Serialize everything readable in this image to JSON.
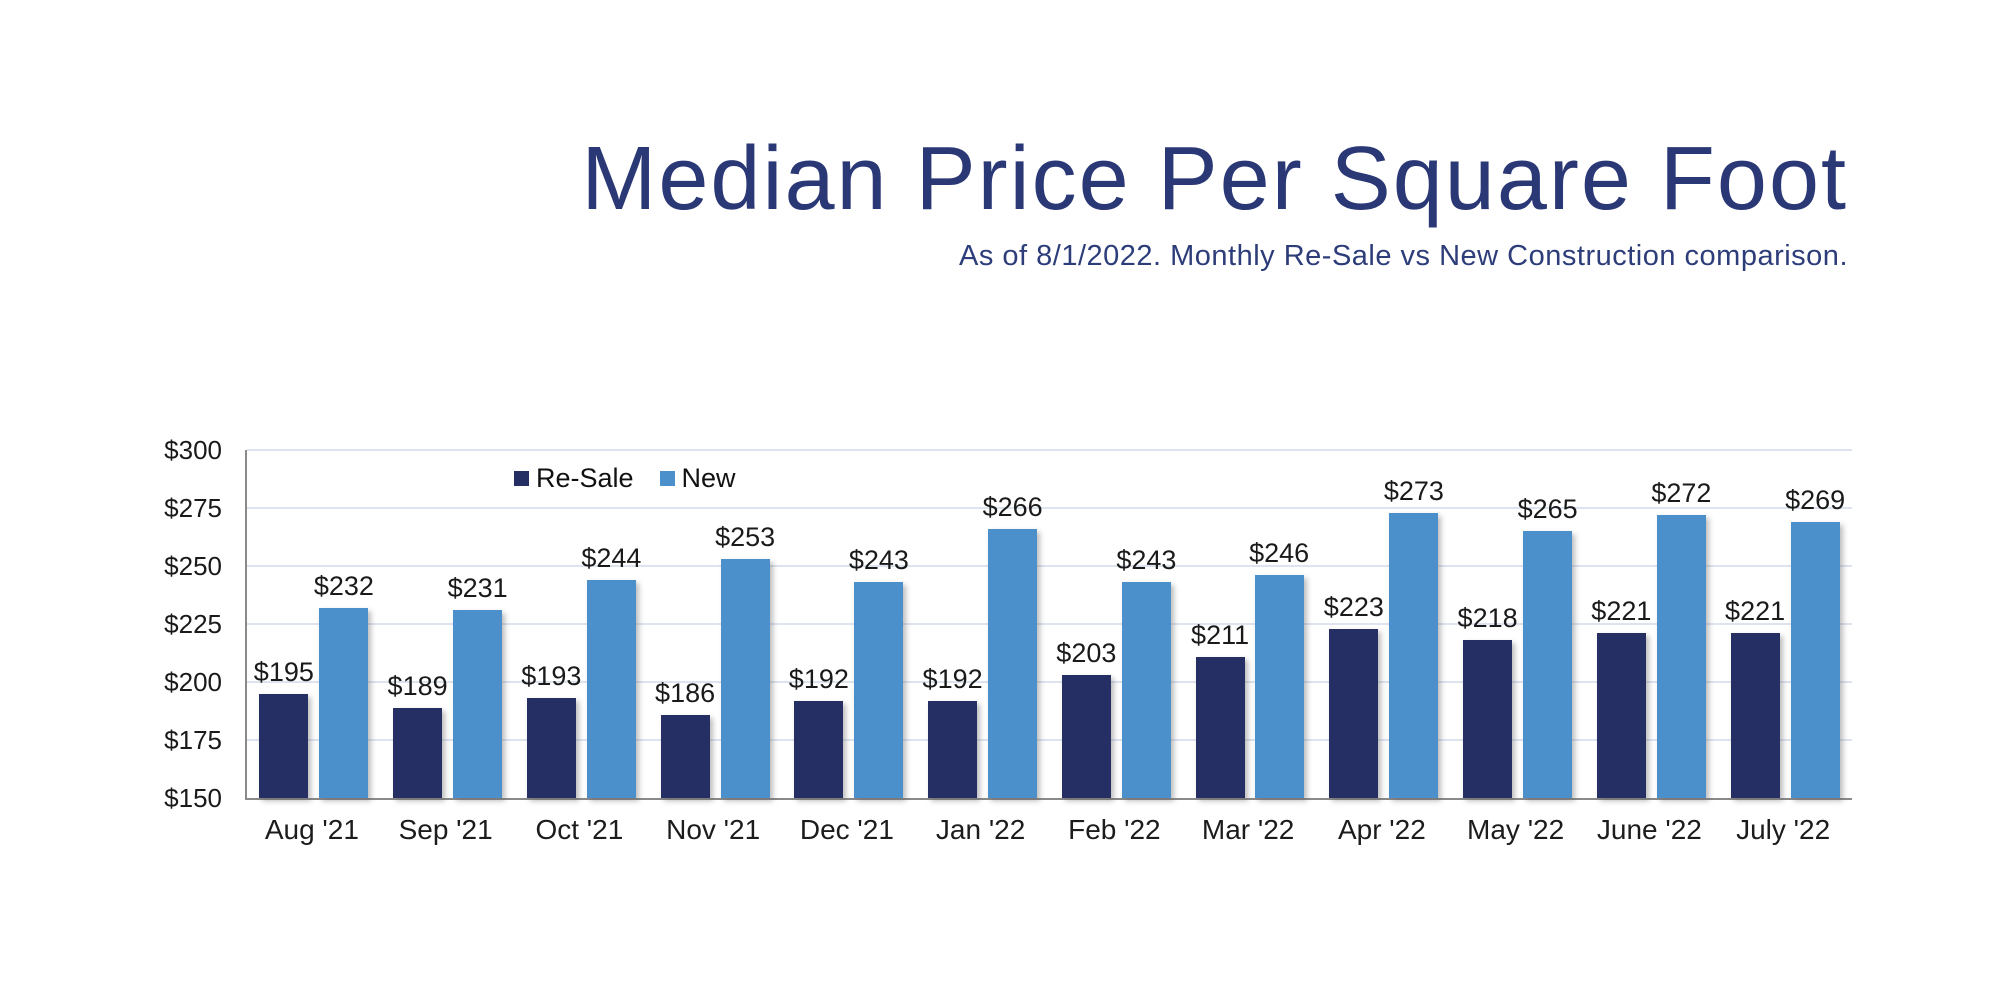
{
  "title": "Median Price Per Square Foot",
  "subtitle": "As of 8/1/2022. Monthly Re-Sale vs New Construction comparison.",
  "colors": {
    "title_text": "#2b3876",
    "subtitle_text": "#2d3d7a",
    "resale_bar": "#262f64",
    "new_bar": "#4b8fcb",
    "axis_line": "#8a8a8a",
    "gridline": "#dde4f0",
    "label_text": "#1a1a1a"
  },
  "legend": {
    "resale_label": "Re-Sale",
    "new_label": "New"
  },
  "chart_data": {
    "type": "bar",
    "categories": [
      "Aug '21",
      "Sep '21",
      "Oct '21",
      "Nov '21",
      "Dec '21",
      "Jan '22",
      "Feb '22",
      "Mar '22",
      "Apr '22",
      "May '22",
      "June '22",
      "July '22"
    ],
    "series": [
      {
        "name": "Re-Sale",
        "color": "#262f64",
        "values": [
          195,
          189,
          193,
          186,
          192,
          192,
          203,
          211,
          223,
          218,
          221,
          221
        ]
      },
      {
        "name": "New",
        "color": "#4b8fcb",
        "values": [
          232,
          231,
          244,
          253,
          243,
          266,
          243,
          246,
          273,
          265,
          272,
          269
        ]
      }
    ],
    "value_prefix": "$",
    "title": "Median Price Per Square Foot",
    "xlabel": "",
    "ylabel": "",
    "ylim": [
      150,
      300
    ],
    "ytick_step": 25,
    "yticks": [
      "$300",
      "$275",
      "$250",
      "$225",
      "$200",
      "$175",
      "$150"
    ],
    "grid": true,
    "legend_position": "top-left-inside"
  }
}
